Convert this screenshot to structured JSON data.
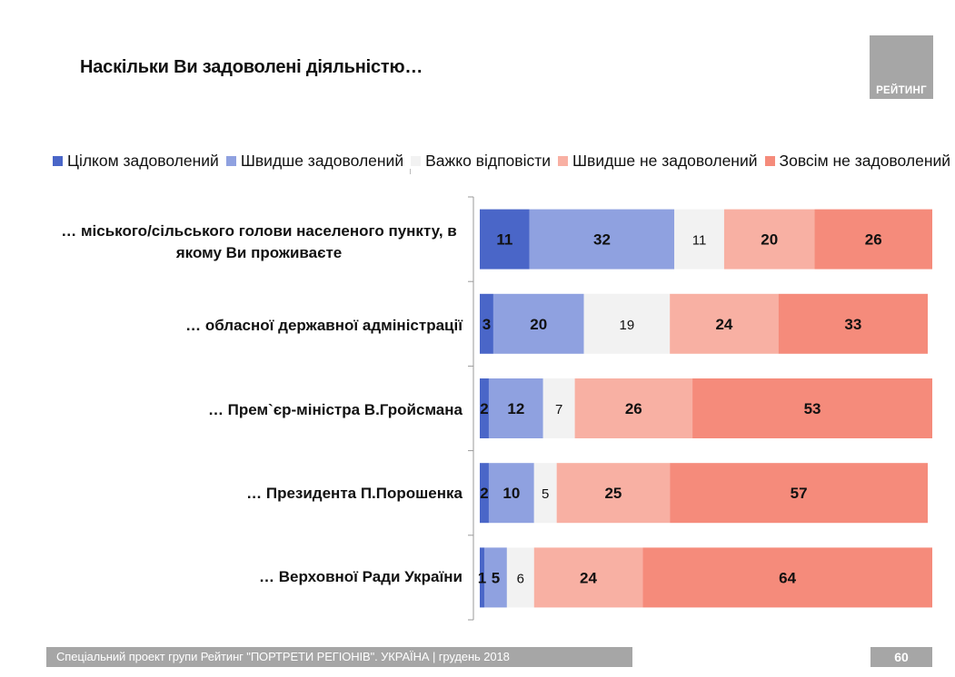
{
  "header": {
    "title": "Наскільки Ви задоволені діяльністю…",
    "logo_text": "РЕЙТИНГ"
  },
  "footer": {
    "text": "Спеціальний проект групи Рейтинг \"ПОРТРЕТИ РЕГІОНІВ\". УКРАЇНА | грудень 2018",
    "page_number": "60"
  },
  "chart_data": {
    "type": "bar",
    "orientation": "horizontal",
    "stacked": true,
    "percent_stacked": true,
    "title": "Наскільки Ви задоволені діяльністю…",
    "xlabel": "",
    "ylabel": "",
    "xlim": [
      0,
      100
    ],
    "grid": false,
    "legend_position": "top",
    "categories": [
      "… міського/сільського голови населеного пункту, в якому Ви проживаєте",
      "… обласної державної адміністрації",
      "… Прем`єр-міністра В.Гройсмана",
      "… Президента П.Порошенка",
      "… Верховної Ради України"
    ],
    "series": [
      {
        "name": "Цілком задоволений",
        "color": "#4a66c8",
        "label_bold": true,
        "values": [
          11,
          3,
          2,
          2,
          1
        ]
      },
      {
        "name": "Швидше задоволений",
        "color": "#8fa1e0",
        "label_bold": true,
        "values": [
          32,
          20,
          12,
          10,
          5
        ]
      },
      {
        "name": "Важко відповісти",
        "color": "#f2f2f2",
        "label_bold": false,
        "values": [
          11,
          19,
          7,
          5,
          6
        ]
      },
      {
        "name": "Швидше не задоволений",
        "color": "#f8b0a3",
        "label_bold": true,
        "values": [
          20,
          24,
          26,
          25,
          24
        ]
      },
      {
        "name": "Зовсім не задоволений",
        "color": "#f58b7b",
        "label_bold": true,
        "values": [
          26,
          33,
          53,
          57,
          64
        ]
      }
    ]
  }
}
